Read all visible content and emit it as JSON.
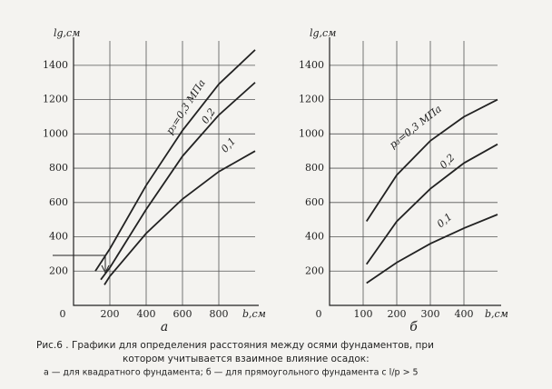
{
  "chart_data": [
    {
      "type": "line",
      "label": "а",
      "xlabel": "b,см",
      "ylabel": "lg,см",
      "xlim": [
        0,
        1000
      ],
      "ylim": [
        0,
        1500
      ],
      "xticks": [
        0,
        200,
        400,
        600,
        800
      ],
      "yticks": [
        200,
        400,
        600,
        800,
        1000,
        1200,
        1400
      ],
      "grid": true,
      "series": [
        {
          "name": "p₃=0,3 МПа",
          "color": "#222222",
          "x": [
            120,
            200,
            400,
            600,
            800,
            1000
          ],
          "values": [
            200,
            330,
            700,
            1020,
            1290,
            1490
          ]
        },
        {
          "name": "0,2",
          "color": "#222222",
          "x": [
            150,
            200,
            400,
            600,
            800,
            1000
          ],
          "values": [
            150,
            220,
            560,
            870,
            1110,
            1300
          ]
        },
        {
          "name": "0,1",
          "color": "#222222",
          "x": [
            170,
            200,
            400,
            600,
            800,
            1000
          ],
          "values": [
            120,
            170,
            420,
            620,
            780,
            900
          ]
        }
      ]
    },
    {
      "type": "line",
      "label": "б",
      "xlabel": "b,см",
      "ylabel": "lg,см",
      "xlim": [
        0,
        500
      ],
      "ylim": [
        0,
        1500
      ],
      "xticks": [
        0,
        100,
        200,
        300,
        400
      ],
      "yticks": [
        200,
        400,
        600,
        800,
        1000,
        1200,
        1400
      ],
      "grid": true,
      "series": [
        {
          "name": "p₃=0,3 МПа",
          "color": "#222222",
          "x": [
            110,
            200,
            300,
            400,
            500
          ],
          "values": [
            490,
            760,
            960,
            1100,
            1200
          ]
        },
        {
          "name": "0,2",
          "color": "#222222",
          "x": [
            110,
            200,
            300,
            400,
            500
          ],
          "values": [
            240,
            490,
            680,
            830,
            940
          ]
        },
        {
          "name": "0,1",
          "color": "#222222",
          "x": [
            110,
            200,
            300,
            400,
            500
          ],
          "values": [
            130,
            250,
            360,
            450,
            530
          ]
        }
      ]
    }
  ],
  "caption": {
    "line1": "Рис.6 . Графики для определения расстояния между осями фундаментов, при",
    "line2": "котором учитывается взаимное влияние осадок:",
    "line3": "а — для квадратного фундамента; б — для прямоугольного фундамента с l/p > 5"
  }
}
